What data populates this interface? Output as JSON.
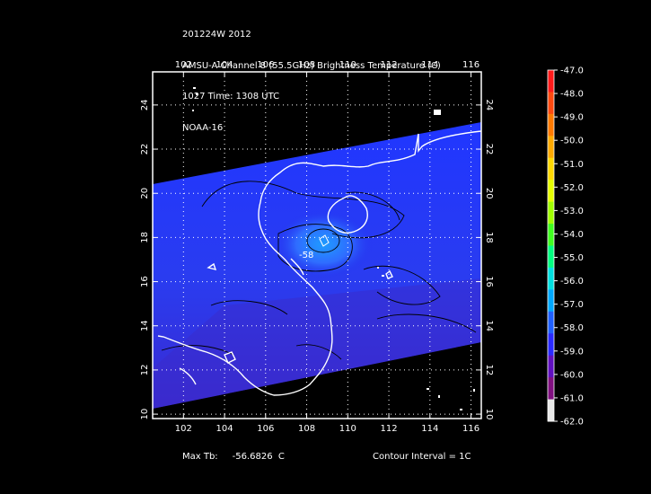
{
  "header": {
    "line1": "201224W 2012",
    "line2": "AMSU-A Channel 8 (55.5GHz) Brightness Temperature (C)",
    "line3": "1027 Time: 1308 UTC",
    "line4": "NOAA-16"
  },
  "map": {
    "lon_min": 100.5,
    "lon_max": 116.5,
    "lat_min": 9.8,
    "lat_max": 25.5,
    "lon_ticks": [
      102,
      104,
      106,
      108,
      110,
      112,
      114,
      116
    ],
    "lat_ticks": [
      10,
      12,
      14,
      16,
      18,
      20,
      22,
      24
    ],
    "swath_color": "#2233ee",
    "coast_color": "#ffffff",
    "contour_color": "#000000",
    "grid_color": "#ffffff",
    "contour_label": "-58"
  },
  "colorbar": {
    "labels": [
      "-47.0",
      "-48.0",
      "-49.0",
      "-50.0",
      "-51.0",
      "-52.0",
      "-53.0",
      "-54.0",
      "-55.0",
      "-56.0",
      "-57.0",
      "-58.0",
      "-59.0",
      "-60.0",
      "-61.0",
      "-62.0"
    ],
    "colors": [
      "#ff1a1a",
      "#ff4a10",
      "#ff7a00",
      "#ffaa00",
      "#ffd800",
      "#e6ff00",
      "#a0ff00",
      "#40ff20",
      "#00ff80",
      "#00e0e0",
      "#00a8ff",
      "#2060ff",
      "#2a2aff",
      "#6010c0",
      "#801080",
      "#e8e8e8"
    ]
  },
  "footer": {
    "max_tb_label": "Max Tb:",
    "max_tb_value": "-56.6826",
    "max_tb_unit": "C",
    "contour_interval": "Contour Interval = 1C"
  }
}
